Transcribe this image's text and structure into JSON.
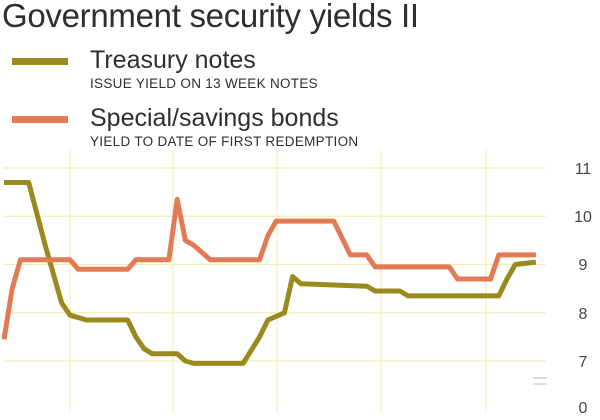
{
  "title": "Government security yields II",
  "legend": [
    {
      "name": "Treasury notes",
      "subtitle": "ISSUE YIELD ON 13 WEEK NOTES",
      "color": "#9a8a1e"
    },
    {
      "name": "Special/savings bonds",
      "subtitle": "YIELD TO DATE OF FIRST REDEMPTION",
      "color": "#e27a55"
    }
  ],
  "chart_data": {
    "type": "line",
    "title": "Government security yields II",
    "xlabel": "",
    "ylabel": "",
    "ylim": [
      0,
      11
    ],
    "y_ticks": [
      "0",
      "7",
      "8",
      "9",
      "10",
      "11"
    ],
    "y_axis_break": "between 0 and 7",
    "grid": "vertical and horizontal, faint",
    "x_period_count": 65,
    "series": [
      {
        "name": "Treasury notes",
        "color": "#9a8a1e",
        "points": [
          [
            0,
            10.7
          ],
          [
            3,
            10.7
          ],
          [
            5,
            9.4
          ],
          [
            7,
            8.2
          ],
          [
            8,
            7.95
          ],
          [
            10,
            7.85
          ],
          [
            15,
            7.85
          ],
          [
            16,
            7.5
          ],
          [
            17,
            7.25
          ],
          [
            18,
            7.15
          ],
          [
            21,
            7.15
          ],
          [
            22,
            7.0
          ],
          [
            23,
            6.95
          ],
          [
            29,
            6.95
          ],
          [
            31,
            7.5
          ],
          [
            32,
            7.85
          ],
          [
            34,
            8.0
          ],
          [
            35,
            8.75
          ],
          [
            36,
            8.6
          ],
          [
            44,
            8.55
          ],
          [
            45,
            8.45
          ],
          [
            48,
            8.45
          ],
          [
            49,
            8.35
          ],
          [
            54,
            8.35
          ],
          [
            55,
            8.35
          ],
          [
            60,
            8.35
          ],
          [
            61,
            8.7
          ],
          [
            62,
            9.0
          ],
          [
            64.5,
            9.05
          ]
        ]
      },
      {
        "name": "Special/savings bonds",
        "color": "#e27a55",
        "points": [
          [
            0,
            7.45
          ],
          [
            1,
            8.5
          ],
          [
            2,
            9.1
          ],
          [
            8,
            9.1
          ],
          [
            9,
            8.9
          ],
          [
            15,
            8.9
          ],
          [
            16,
            9.1
          ],
          [
            20,
            9.1
          ],
          [
            21,
            10.35
          ],
          [
            22,
            9.5
          ],
          [
            23,
            9.4
          ],
          [
            25,
            9.1
          ],
          [
            31,
            9.1
          ],
          [
            32,
            9.6
          ],
          [
            33,
            9.9
          ],
          [
            40,
            9.9
          ],
          [
            42,
            9.2
          ],
          [
            44,
            9.2
          ],
          [
            45,
            8.95
          ],
          [
            54,
            8.95
          ],
          [
            55,
            8.7
          ],
          [
            59,
            8.7
          ],
          [
            60,
            9.2
          ],
          [
            64.5,
            9.2
          ]
        ]
      }
    ]
  }
}
